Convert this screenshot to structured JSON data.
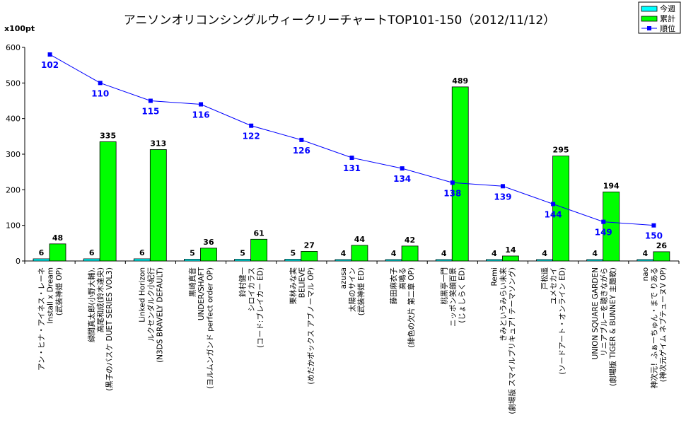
{
  "chart_data": {
    "type": "bar",
    "title": "アニソンオリコンシングルウィークリーチャートTOP101-150（2012/11/12）",
    "ylabel": "x100pt",
    "ylim": [
      0,
      600
    ],
    "yticks": [
      0,
      100,
      200,
      300,
      400,
      500,
      600
    ],
    "grid": false,
    "legend_position": "top-right",
    "categories": [
      [
        "アン・ヒナ・アイネス・レーネ",
        "Install x Dream",
        "(武装神姫 OP)"
      ],
      [
        "緑間真太郎(小野大輔),",
        "高尾和成(鈴木達央)",
        "(黒子のバスケ DUET SERIES VOL3)"
      ],
      [
        "Linked Horizon",
        "ルクセンダルク小紀行",
        "(N3DS BRAVELY DEFAULT)"
      ],
      [
        "黒崎真音",
        "UNDER/SHAFT",
        "(ヨルムンガンド perfect order OP)"
      ],
      [
        "鈴村健一",
        "シロイカラス",
        "(コード:ブレイカー ED)"
      ],
      [
        "栗林みな実",
        "BELIEVE",
        "(めだかボックス アブノーマル OP)"
      ],
      [
        "azusa",
        "太陽のサイン",
        "(武装神姫 ED)"
      ],
      [
        "藤田麻衣子",
        "高鳴る",
        "(緋色の欠片 第二章 OP)"
      ],
      [
        "桃黒亭一門",
        "ニッポン笑顔百景",
        "(じょしらく ED)"
      ],
      [
        "Remi",
        "きみというみらい未来",
        "(劇場版 スマイルプリキュア! テーマソング)"
      ],
      [
        "戸松遥",
        "ユメセカイ",
        "(ソードアート・オンライン ED)"
      ],
      [
        "UNION SQUARE GARDEN",
        "リニアブルーを聴きながら",
        "(劇場版 TIGER & BUNNEY 主題歌)"
      ],
      [
        "nao",
        "神次元！ふぁーちゅん・まで りある",
        "(神次元ゲイム ネプテューヌV OP)"
      ]
    ],
    "series": [
      {
        "name": "今週",
        "type": "bar",
        "color": "#00ffff",
        "values": [
          6,
          6,
          6,
          5,
          5,
          5,
          4,
          4,
          4,
          4,
          4,
          4,
          4
        ]
      },
      {
        "name": "累計",
        "type": "bar",
        "color": "#00ff00",
        "values": [
          48,
          335,
          313,
          36,
          61,
          27,
          44,
          42,
          489,
          14,
          295,
          194,
          26
        ]
      },
      {
        "name": "順位",
        "type": "line",
        "color": "#0000ff",
        "values": [
          102,
          110,
          115,
          116,
          122,
          126,
          131,
          134,
          138,
          139,
          144,
          149,
          150
        ],
        "plotted_as": "(160 - rank) x 10"
      }
    ]
  }
}
